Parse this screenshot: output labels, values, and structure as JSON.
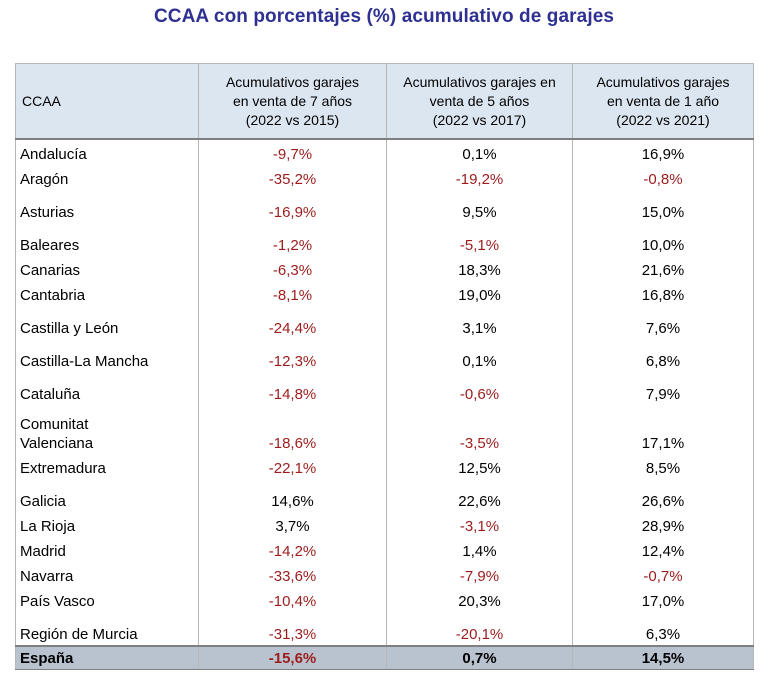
{
  "title": "CCAA con porcentajes (%) acumulativo de garajes",
  "headers": [
    "CCAA",
    "Acumulativos garajes\nen venta de 7 años\n(2022 vs 2015)",
    "Acumulativos garajes en\nventa de 5 años\n(2022 vs 2017)",
    "Acumulativos garajes\nen venta de 1 año\n(2022 vs 2021)"
  ],
  "rows": [
    {
      "name": "Andalucía",
      "v7": "-9,7%",
      "v5": "0,1%",
      "v1": "16,9%"
    },
    {
      "name": "Aragón",
      "v7": "-35,2%",
      "v5": "-19,2%",
      "v1": "-0,8%"
    },
    {
      "name": "Asturias",
      "v7": "-16,9%",
      "v5": "9,5%",
      "v1": "15,0%"
    },
    {
      "name": "Baleares",
      "v7": "-1,2%",
      "v5": "-5,1%",
      "v1": "10,0%"
    },
    {
      "name": "Canarias",
      "v7": "-6,3%",
      "v5": "18,3%",
      "v1": "21,6%"
    },
    {
      "name": "Cantabria",
      "v7": "-8,1%",
      "v5": "19,0%",
      "v1": "16,8%"
    },
    {
      "name": "Castilla y León",
      "v7": "-24,4%",
      "v5": "3,1%",
      "v1": "7,6%"
    },
    {
      "name": "Castilla-La Mancha",
      "v7": "-12,3%",
      "v5": "0,1%",
      "v1": "6,8%"
    },
    {
      "name": "Cataluña",
      "v7": "-14,8%",
      "v5": "-0,6%",
      "v1": "7,9%"
    },
    {
      "name": "Comunitat\nValenciana",
      "v7": "-18,6%",
      "v5": "-3,5%",
      "v1": "17,1%"
    },
    {
      "name": "Extremadura",
      "v7": "-22,1%",
      "v5": "12,5%",
      "v1": "8,5%"
    },
    {
      "name": "Galicia",
      "v7": "14,6%",
      "v5": "22,6%",
      "v1": "26,6%"
    },
    {
      "name": "La Rioja",
      "v7": "3,7%",
      "v5": "-3,1%",
      "v1": "28,9%"
    },
    {
      "name": "Madrid",
      "v7": "-14,2%",
      "v5": "1,4%",
      "v1": "12,4%"
    },
    {
      "name": "Navarra",
      "v7": "-33,6%",
      "v5": "-7,9%",
      "v1": "-0,7%"
    },
    {
      "name": "País Vasco",
      "v7": "-10,4%",
      "v5": "20,3%",
      "v1": "17,0%"
    },
    {
      "name": "Región de Murcia",
      "v7": "-31,3%",
      "v5": "-20,1%",
      "v1": "6,3%"
    }
  ],
  "total": {
    "name": "España",
    "v7": "-15,6%",
    "v5": "0,7%",
    "v1": "14,5%"
  },
  "colors": {
    "title": "#2e3192",
    "negative": "#9c1c1c",
    "header_bg": "#dce6f1",
    "total_bg": "#b8c3cf"
  }
}
